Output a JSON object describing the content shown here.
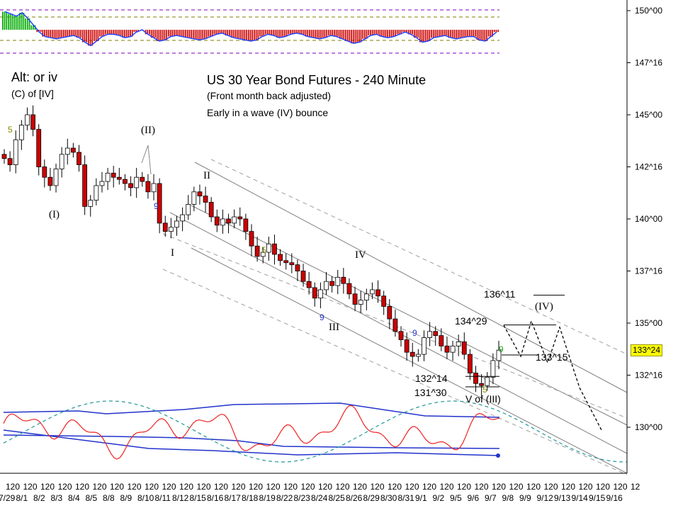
{
  "chart_data": {
    "type": "candlestick",
    "title": "US 30 Year Bond Futures - 240 Minute",
    "subtitle": "(Front month back adjusted)",
    "note": "Early in a wave (IV) bounce",
    "alt_label": "Alt: or iv",
    "alt_sub": "(C) of [IV]",
    "y_axis": {
      "ticks": [
        "150^00",
        "147^16",
        "145^00",
        "142^16",
        "140^00",
        "137^16",
        "135^00",
        "132^16",
        "130^00"
      ],
      "tick_values": [
        150.0,
        147.5,
        145.0,
        142.5,
        140.0,
        137.5,
        135.0,
        132.5,
        130.0
      ],
      "current_price": "133^24"
    },
    "x_axis": {
      "upper_labels": [
        "120",
        "120",
        "120",
        "120",
        "120",
        "120",
        "120",
        "120",
        "120",
        "120",
        "120",
        "120",
        "120",
        "120",
        "120",
        "120",
        "120",
        "120",
        "120",
        "120",
        "120",
        "120",
        "120",
        "120",
        "120",
        "120",
        "120",
        "120",
        "120",
        "120",
        "120",
        "120",
        "120",
        "120",
        "120",
        "120",
        "12"
      ],
      "lower_labels": [
        "7/29",
        "8/1",
        "8/2",
        "8/3",
        "8/4",
        "8/5",
        "8/8",
        "8/9",
        "8/10",
        "8/11",
        "8/12",
        "8/15",
        "8/16",
        "8/17",
        "8/18",
        "8/19",
        "8/22",
        "8/23",
        "8/24",
        "8/25",
        "8/26",
        "8/29",
        "8/30",
        "8/31",
        "9/1",
        "9/2",
        "9/5",
        "9/6",
        "9/7",
        "9/8",
        "9/9",
        "9/12",
        "9/13",
        "9/14",
        "9/15",
        "9/16"
      ]
    },
    "closes": [
      142.9,
      142.6,
      143.8,
      144.5,
      145.0,
      144.3,
      142.5,
      142.0,
      141.6,
      142.4,
      143.1,
      143.4,
      143.2,
      142.6,
      140.6,
      140.9,
      141.6,
      141.8,
      142.2,
      142.0,
      141.9,
      141.7,
      141.5,
      142.0,
      141.8,
      141.3,
      141.7,
      139.8,
      139.4,
      139.6,
      139.9,
      140.2,
      140.7,
      141.3,
      141.1,
      140.8,
      140.1,
      139.7,
      140.0,
      139.8,
      140.1,
      140.0,
      139.4,
      138.7,
      138.2,
      138.4,
      138.8,
      138.3,
      138.0,
      137.9,
      137.8,
      137.5,
      137.0,
      136.7,
      136.2,
      136.6,
      137.0,
      136.8,
      137.2,
      136.9,
      136.4,
      135.9,
      136.1,
      136.4,
      136.6,
      136.3,
      135.8,
      135.2,
      134.6,
      134.2,
      133.6,
      133.4,
      133.5,
      134.3,
      134.6,
      134.4,
      133.9,
      133.6,
      133.9,
      134.1,
      133.5,
      132.6,
      132.1,
      132.0,
      132.4,
      133.2,
      133.7
    ],
    "wave_labels": [
      "(II)",
      "(I)",
      "II",
      "I",
      "IV",
      "III",
      "V of (III)",
      "(IV)"
    ],
    "count_labels": [
      "5",
      "9",
      "5",
      "9",
      "9",
      "9",
      "5"
    ],
    "price_levels": [
      {
        "label": "136^11",
        "value": 136.34
      },
      {
        "label": "134^29",
        "value": 134.91
      },
      {
        "label": "133^15",
        "value": 133.47
      },
      {
        "label": "132^14",
        "value": 132.44
      },
      {
        "label": "131^30",
        "value": 131.94
      }
    ],
    "projection": [
      134.9,
      133.4,
      135.1,
      133.1,
      134.8,
      131.9,
      129.8
    ],
    "top_histogram": {
      "levels": [
        1.0,
        0.7,
        0.35,
        0.0
      ],
      "values": [
        0.8,
        0.7,
        0.6,
        0.75,
        0.5,
        0.2,
        -0.1,
        -0.3,
        -0.35,
        -0.4,
        -0.35,
        -0.3,
        -0.25,
        -0.35,
        -0.55,
        -0.7,
        -0.5,
        -0.3,
        -0.2,
        -0.2,
        -0.25,
        -0.35,
        -0.3,
        -0.1,
        0.0,
        -0.2,
        -0.35,
        -0.5,
        -0.45,
        -0.3,
        -0.25,
        -0.3,
        -0.35,
        -0.4,
        -0.45,
        -0.4,
        -0.3,
        -0.2,
        -0.15,
        -0.25,
        -0.35,
        -0.4,
        -0.45,
        -0.5,
        -0.45,
        -0.3,
        -0.2,
        -0.25,
        -0.35,
        -0.3,
        -0.2,
        -0.15,
        -0.2,
        -0.3,
        -0.35,
        -0.4,
        -0.35,
        -0.25,
        -0.3,
        -0.4,
        -0.5,
        -0.6,
        -0.55,
        -0.4,
        -0.25,
        -0.2,
        -0.3,
        -0.35,
        -0.3,
        -0.2,
        -0.1,
        -0.2,
        -0.35,
        -0.55,
        -0.5,
        -0.35,
        -0.3,
        -0.25,
        -0.35,
        -0.4,
        -0.35,
        -0.3,
        -0.3,
        -0.45,
        -0.5,
        -0.3,
        -0.1
      ]
    }
  },
  "colors": {
    "up_candle": "#ffffff",
    "down_candle": "#cc0000",
    "wick": "#000000",
    "channel": "#808080",
    "channel_dashed": "#a0a0a0",
    "hist_pos": "#00aa00",
    "hist_neg": "#cc0000",
    "hist_line": "#2244ff",
    "guide_purple": "#9933cc",
    "guide_olive": "#999933",
    "osc_red": "#ee2222",
    "osc_blue": "#2233cc",
    "osc_teal": "#229999",
    "price_badge": "#ffff00"
  }
}
